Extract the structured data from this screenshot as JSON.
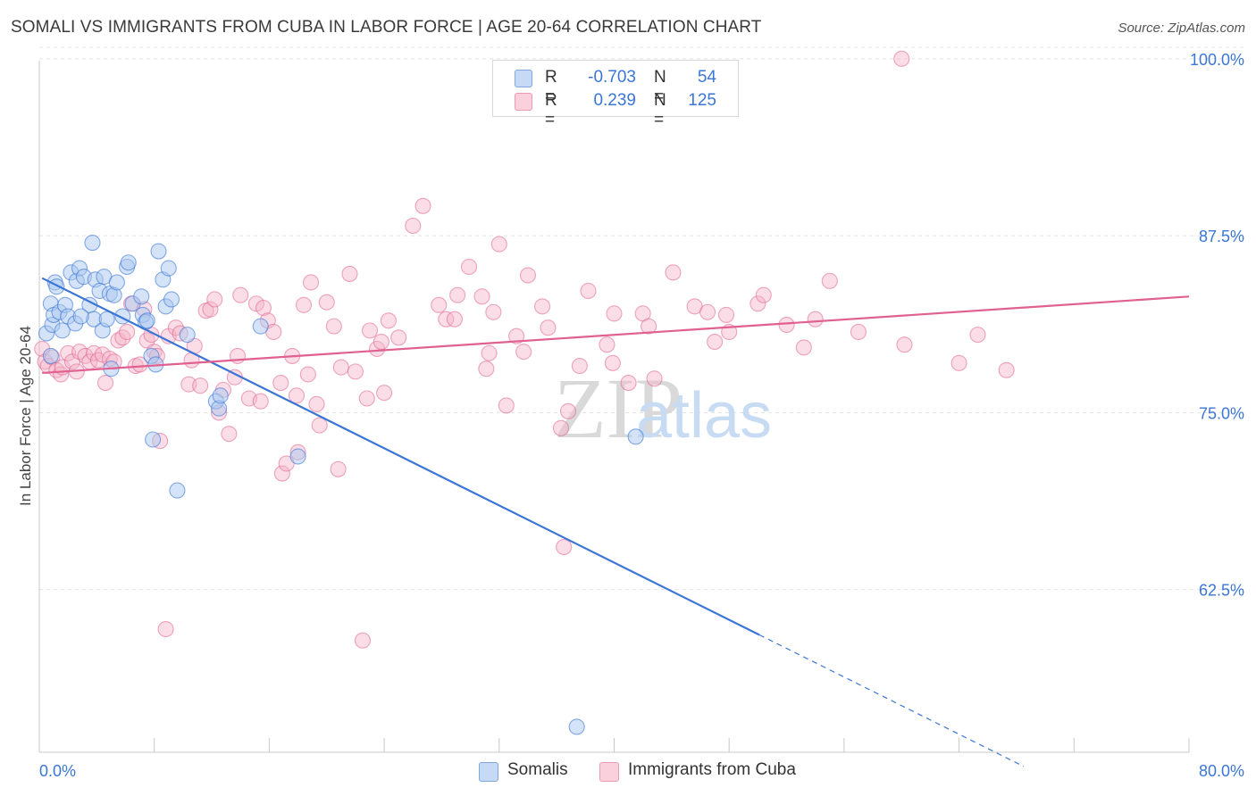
{
  "title": "SOMALI VS IMMIGRANTS FROM CUBA IN LABOR FORCE | AGE 20-64 CORRELATION CHART",
  "source": "Source: ZipAtlas.com",
  "watermark": {
    "zip": "ZIP",
    "atlas": "atlas"
  },
  "legend_top": [
    {
      "r_label": "R =",
      "r_value": "-0.703",
      "n_label": "N =",
      "n_value": "54",
      "color": "#9ec0ee"
    },
    {
      "r_label": "R =",
      "r_value": "0.239",
      "n_label": "N =",
      "n_value": "125",
      "color": "#f4b3c8"
    }
  ],
  "legend_bottom": [
    {
      "label": "Somalis",
      "color": "#9ec0ee"
    },
    {
      "label": "Immigrants from Cuba",
      "color": "#f4b3c8"
    }
  ],
  "chart_data": {
    "type": "scatter",
    "ylabel": "In Labor Force | Age 20-64",
    "xlim": [
      0,
      80
    ],
    "ylim": [
      51,
      101
    ],
    "x_tick_labels": [
      {
        "x": 0,
        "label": "0.0%"
      },
      {
        "x": 80,
        "label": "80.0%"
      }
    ],
    "x_minor_ticks": [
      8,
      16,
      24,
      32,
      40,
      48,
      56,
      64,
      72
    ],
    "y_ticks": [
      {
        "y": 100,
        "label": "100.0%"
      },
      {
        "y": 87.5,
        "label": "87.5%"
      },
      {
        "y": 75,
        "label": "75.0%"
      },
      {
        "y": 62.5,
        "label": "62.5%"
      }
    ],
    "grid": true,
    "series": [
      {
        "name": "Somalis",
        "color": "#3b76d6",
        "fill": "#a9c8f0",
        "points": [
          [
            0.5,
            80.6
          ],
          [
            0.8,
            79.0
          ],
          [
            0.9,
            81.2
          ],
          [
            0.8,
            82.7
          ],
          [
            1.0,
            81.9
          ],
          [
            1.1,
            84.2
          ],
          [
            1.2,
            83.9
          ],
          [
            1.4,
            82.1
          ],
          [
            1.6,
            80.8
          ],
          [
            1.8,
            82.6
          ],
          [
            2.0,
            81.8
          ],
          [
            2.2,
            84.9
          ],
          [
            2.5,
            81.3
          ],
          [
            2.6,
            84.3
          ],
          [
            2.8,
            85.2
          ],
          [
            3.1,
            84.6
          ],
          [
            3.5,
            82.6
          ],
          [
            3.7,
            87.0
          ],
          [
            3.8,
            81.6
          ],
          [
            3.9,
            84.4
          ],
          [
            4.2,
            83.6
          ],
          [
            4.4,
            80.8
          ],
          [
            4.5,
            84.6
          ],
          [
            4.7,
            81.6
          ],
          [
            4.9,
            83.4
          ],
          [
            5.0,
            78.1
          ],
          [
            5.2,
            83.3
          ],
          [
            5.4,
            84.2
          ],
          [
            5.8,
            81.8
          ],
          [
            6.1,
            85.3
          ],
          [
            6.2,
            85.6
          ],
          [
            6.5,
            82.7
          ],
          [
            7.1,
            83.2
          ],
          [
            7.2,
            81.9
          ],
          [
            7.4,
            81.4
          ],
          [
            7.8,
            79.0
          ],
          [
            7.9,
            73.1
          ],
          [
            8.1,
            78.4
          ],
          [
            8.3,
            86.4
          ],
          [
            8.6,
            84.4
          ],
          [
            8.8,
            82.5
          ],
          [
            9.0,
            85.2
          ],
          [
            9.2,
            83.0
          ],
          [
            9.6,
            69.5
          ],
          [
            10.3,
            80.5
          ],
          [
            12.3,
            75.8
          ],
          [
            12.5,
            75.3
          ],
          [
            12.6,
            76.2
          ],
          [
            15.4,
            81.1
          ],
          [
            18.0,
            71.9
          ],
          [
            41.5,
            73.3
          ],
          [
            37.4,
            52.8
          ],
          [
            7.5,
            81.5
          ],
          [
            2.9,
            81.8
          ]
        ],
        "trend": {
          "x1": 0.2,
          "y1": 84.5,
          "x2": 50.1,
          "y2": 59.3,
          "dash_x2": 68.5,
          "dash_y2": 50.0
        }
      },
      {
        "name": "Immigrants from Cuba",
        "color": "#e0608f",
        "fill": "#f4b3c8",
        "points": [
          [
            0.2,
            79.5
          ],
          [
            0.4,
            78.6
          ],
          [
            0.6,
            78.3
          ],
          [
            0.9,
            78.9
          ],
          [
            1.2,
            78.0
          ],
          [
            1.5,
            77.7
          ],
          [
            1.6,
            78.2
          ],
          [
            2.0,
            79.2
          ],
          [
            2.3,
            78.6
          ],
          [
            2.6,
            77.9
          ],
          [
            2.8,
            79.3
          ],
          [
            3.2,
            79.0
          ],
          [
            3.5,
            78.6
          ],
          [
            3.8,
            79.2
          ],
          [
            4.1,
            78.7
          ],
          [
            4.4,
            79.1
          ],
          [
            4.6,
            77.1
          ],
          [
            4.9,
            78.8
          ],
          [
            5.2,
            78.6
          ],
          [
            5.5,
            80.1
          ],
          [
            5.8,
            80.3
          ],
          [
            6.1,
            80.7
          ],
          [
            6.4,
            82.7
          ],
          [
            6.7,
            78.3
          ],
          [
            7.0,
            78.4
          ],
          [
            7.3,
            82.3
          ],
          [
            7.5,
            80.1
          ],
          [
            7.8,
            80.5
          ],
          [
            8.0,
            79.3
          ],
          [
            8.2,
            79.0
          ],
          [
            8.4,
            73.0
          ],
          [
            8.8,
            59.7
          ],
          [
            9.0,
            80.4
          ],
          [
            9.5,
            81.0
          ],
          [
            9.8,
            80.6
          ],
          [
            10.4,
            77.0
          ],
          [
            10.6,
            78.7
          ],
          [
            10.8,
            79.7
          ],
          [
            11.2,
            76.9
          ],
          [
            11.6,
            82.2
          ],
          [
            11.9,
            82.3
          ],
          [
            12.2,
            83.0
          ],
          [
            12.5,
            75.0
          ],
          [
            12.8,
            76.6
          ],
          [
            13.2,
            73.5
          ],
          [
            13.6,
            77.5
          ],
          [
            13.8,
            79.0
          ],
          [
            14.0,
            83.3
          ],
          [
            14.6,
            76.0
          ],
          [
            15.1,
            82.7
          ],
          [
            15.4,
            75.8
          ],
          [
            15.6,
            82.4
          ],
          [
            15.9,
            81.5
          ],
          [
            16.3,
            80.7
          ],
          [
            16.8,
            77.1
          ],
          [
            16.9,
            70.7
          ],
          [
            17.2,
            71.4
          ],
          [
            17.6,
            79.0
          ],
          [
            17.9,
            76.2
          ],
          [
            18.0,
            72.2
          ],
          [
            18.4,
            82.6
          ],
          [
            18.7,
            77.7
          ],
          [
            18.9,
            84.2
          ],
          [
            19.3,
            75.6
          ],
          [
            19.5,
            74.1
          ],
          [
            20.0,
            82.8
          ],
          [
            20.5,
            81.1
          ],
          [
            20.8,
            71.0
          ],
          [
            21.0,
            78.2
          ],
          [
            21.6,
            84.8
          ],
          [
            22.0,
            77.9
          ],
          [
            22.5,
            58.9
          ],
          [
            22.8,
            76.0
          ],
          [
            23.0,
            80.8
          ],
          [
            23.5,
            79.5
          ],
          [
            23.8,
            80.0
          ],
          [
            24.0,
            76.4
          ],
          [
            24.3,
            81.5
          ],
          [
            25.0,
            80.3
          ],
          [
            26.0,
            88.2
          ],
          [
            26.7,
            89.6
          ],
          [
            27.8,
            82.6
          ],
          [
            28.3,
            81.6
          ],
          [
            28.9,
            81.6
          ],
          [
            29.1,
            83.3
          ],
          [
            29.9,
            85.3
          ],
          [
            30.8,
            83.2
          ],
          [
            31.1,
            78.1
          ],
          [
            31.3,
            79.2
          ],
          [
            31.6,
            82.1
          ],
          [
            32.0,
            86.9
          ],
          [
            32.5,
            75.5
          ],
          [
            33.2,
            80.4
          ],
          [
            33.7,
            79.3
          ],
          [
            34.0,
            84.7
          ],
          [
            35.0,
            82.5
          ],
          [
            35.4,
            81.0
          ],
          [
            36.3,
            73.9
          ],
          [
            36.5,
            65.5
          ],
          [
            36.8,
            75.1
          ],
          [
            37.6,
            78.3
          ],
          [
            38.2,
            83.6
          ],
          [
            39.5,
            79.8
          ],
          [
            39.9,
            78.5
          ],
          [
            40.0,
            82.0
          ],
          [
            41.0,
            77.1
          ],
          [
            42.0,
            82.0
          ],
          [
            42.4,
            81.1
          ],
          [
            42.8,
            77.4
          ],
          [
            44.1,
            84.9
          ],
          [
            45.6,
            82.5
          ],
          [
            46.5,
            82.1
          ],
          [
            47.0,
            80.0
          ],
          [
            47.8,
            81.9
          ],
          [
            48.0,
            80.7
          ],
          [
            50.0,
            82.7
          ],
          [
            50.4,
            83.3
          ],
          [
            52.0,
            81.2
          ],
          [
            53.2,
            79.6
          ],
          [
            54.0,
            81.6
          ],
          [
            55.0,
            84.3
          ],
          [
            57.0,
            80.7
          ],
          [
            60.0,
            100.0
          ],
          [
            60.2,
            79.8
          ],
          [
            64.0,
            78.5
          ],
          [
            65.3,
            80.5
          ],
          [
            67.3,
            78.0
          ]
        ],
        "trend": {
          "x1": 0.2,
          "y1": 77.8,
          "x2": 80.0,
          "y2": 83.2
        }
      }
    ]
  }
}
